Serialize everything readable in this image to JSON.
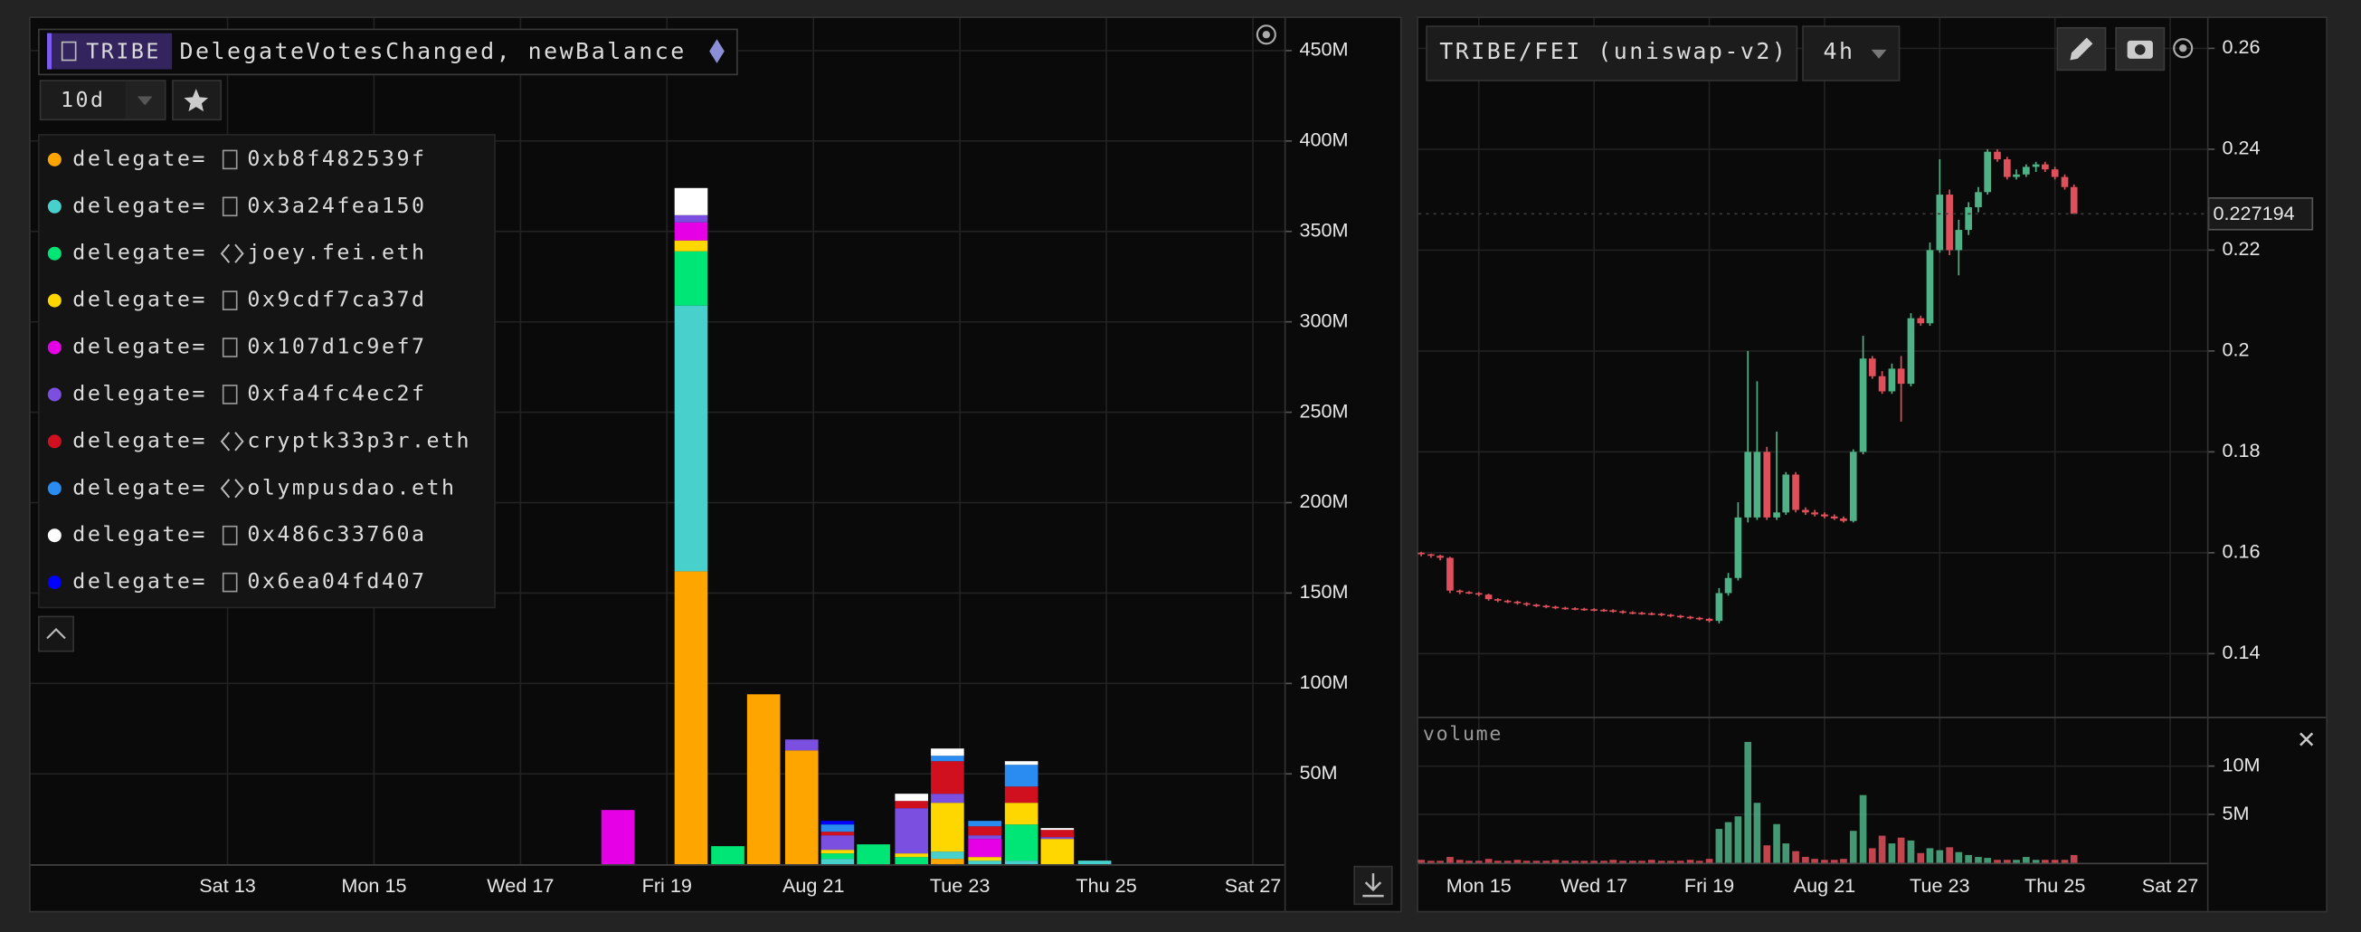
{
  "ui": {
    "left": {
      "token": "TRIBE",
      "query": "DelegateVotesChanged, newBalance",
      "range": "10d",
      "legend_prefix": "delegate="
    },
    "right": {
      "pair": "TRIBE/FEI (uniswap-v2)",
      "interval": "4h"
    }
  },
  "chart_data": [
    {
      "type": "stacked_bar",
      "x": [
        18.33,
        19.33,
        19.83,
        20.32,
        20.84,
        21.33,
        21.82,
        22.34,
        22.83,
        23.34,
        23.84,
        24.33,
        24.84
      ],
      "series": [
        {
          "name": "0xb8f482539f",
          "color": "#ffa500",
          "values": [
            null,
            162,
            null,
            94,
            63,
            null,
            null,
            null,
            3,
            null,
            null,
            null,
            null
          ]
        },
        {
          "name": "0x3a24fea150",
          "color": "#48d1cc",
          "values": [
            null,
            147,
            null,
            null,
            null,
            3,
            null,
            null,
            4,
            2,
            2,
            null,
            2
          ]
        },
        {
          "name": "joey.fei.eth",
          "color": "#00e676",
          "values": [
            null,
            30,
            10,
            null,
            null,
            3,
            11,
            4,
            null,
            null,
            20,
            null,
            null
          ]
        },
        {
          "name": "0x9cdf7ca37d",
          "color": "#ffd700",
          "values": [
            null,
            6,
            null,
            null,
            null,
            2,
            null,
            2,
            27,
            2,
            12,
            14,
            null
          ]
        },
        {
          "name": "0x107d1c9ef7",
          "color": "#e600e6",
          "values": [
            30,
            10,
            null,
            null,
            null,
            null,
            null,
            null,
            null,
            10,
            null,
            null,
            null
          ]
        },
        {
          "name": "0xfa4fc4ec2f",
          "color": "#7b4fe0",
          "values": [
            null,
            4,
            null,
            null,
            6,
            8,
            null,
            25,
            5,
            2,
            null,
            1,
            null
          ]
        },
        {
          "name": "cryptk33p3r.eth",
          "color": "#d0101f",
          "values": [
            null,
            null,
            null,
            null,
            null,
            2,
            null,
            4,
            18,
            5,
            9,
            4,
            null
          ]
        },
        {
          "name": "olympusdao.eth",
          "color": "#2a8cf0",
          "values": [
            null,
            null,
            null,
            null,
            null,
            4,
            null,
            null,
            3,
            3,
            12,
            null,
            null
          ]
        },
        {
          "name": "0x486c33760a",
          "color": "#ffffff",
          "values": [
            null,
            15,
            null,
            null,
            null,
            null,
            null,
            4,
            4,
            null,
            2,
            1,
            null
          ]
        },
        {
          "name": "0x6ea04fd407",
          "color": "#0000ff",
          "values": [
            null,
            null,
            null,
            null,
            null,
            2,
            null,
            null,
            null,
            null,
            null,
            null,
            null
          ]
        }
      ],
      "xlim": [
        10.31,
        27.43
      ],
      "ylim": [
        0,
        468
      ],
      "xticks": [
        {
          "value": 13,
          "label": "Sat 13"
        },
        {
          "value": 15,
          "label": "Mon 15"
        },
        {
          "value": 17,
          "label": "Wed 17"
        },
        {
          "value": 19,
          "label": "Fri 19"
        },
        {
          "value": 21,
          "label": "Aug 21"
        },
        {
          "value": 23,
          "label": "Tue 23"
        },
        {
          "value": 25,
          "label": "Thu 25"
        },
        {
          "value": 27,
          "label": "Sat 27"
        }
      ],
      "yticks": [
        {
          "value": 50,
          "label": "50M"
        },
        {
          "value": 100,
          "label": "100M"
        },
        {
          "value": 150,
          "label": "150M"
        },
        {
          "value": 200,
          "label": "200M"
        },
        {
          "value": 250,
          "label": "250M"
        },
        {
          "value": 300,
          "label": "300M"
        },
        {
          "value": 350,
          "label": "350M"
        },
        {
          "value": 400,
          "label": "400M"
        },
        {
          "value": 450,
          "label": "450M"
        }
      ],
      "grid": true
    },
    {
      "type": "candlestick",
      "x": [
        14,
        14.17,
        14.33,
        14.5,
        14.67,
        14.83,
        15,
        15.17,
        15.33,
        15.5,
        15.67,
        15.83,
        16,
        16.17,
        16.33,
        16.5,
        16.67,
        16.83,
        17,
        17.17,
        17.33,
        17.5,
        17.67,
        17.83,
        18,
        18.17,
        18.33,
        18.5,
        18.67,
        18.83,
        19,
        19.17,
        19.33,
        19.5,
        19.67,
        19.83,
        20,
        20.17,
        20.33,
        20.5,
        20.67,
        20.83,
        21,
        21.17,
        21.33,
        21.5,
        21.67,
        21.83,
        22,
        22.17,
        22.33,
        22.5,
        22.67,
        22.83,
        23,
        23.17,
        23.33,
        23.5,
        23.67,
        23.83,
        24,
        24.17,
        24.33,
        24.5,
        24.67,
        24.83,
        25,
        25.17,
        25.33
      ],
      "open": [
        0.16,
        0.1597,
        0.1594,
        0.159,
        0.1525,
        0.1522,
        0.152,
        0.1517,
        0.1508,
        0.1505,
        0.1503,
        0.15,
        0.1497,
        0.1495,
        0.1493,
        0.1491,
        0.149,
        0.1489,
        0.1488,
        0.1487,
        0.1486,
        0.1484,
        0.1482,
        0.1481,
        0.148,
        0.1479,
        0.1477,
        0.1475,
        0.1473,
        0.1471,
        0.1469,
        0.1465,
        0.152,
        0.155,
        0.167,
        0.167,
        0.18,
        0.167,
        0.168,
        0.1755,
        0.1685,
        0.168,
        0.1676,
        0.1672,
        0.1668,
        0.1663,
        0.18,
        0.1985,
        0.195,
        0.192,
        0.1965,
        0.1935,
        0.2065,
        0.2055,
        0.22,
        0.231,
        0.22,
        0.224,
        0.2285,
        0.2315,
        0.2395,
        0.238,
        0.2345,
        0.235,
        0.2365,
        0.237,
        0.236,
        0.2345,
        0.2325
      ],
      "high": [
        0.1602,
        0.1598,
        0.1596,
        0.1592,
        0.1527,
        0.1524,
        0.1522,
        0.1519,
        0.151,
        0.1507,
        0.1505,
        0.1502,
        0.1499,
        0.1497,
        0.1495,
        0.1493,
        0.1492,
        0.1491,
        0.149,
        0.1489,
        0.1488,
        0.1486,
        0.1484,
        0.1483,
        0.1482,
        0.1481,
        0.1479,
        0.1477,
        0.1475,
        0.1473,
        0.1471,
        0.153,
        0.156,
        0.17,
        0.2,
        0.194,
        0.181,
        0.184,
        0.176,
        0.176,
        0.169,
        0.1685,
        0.168,
        0.1676,
        0.1672,
        0.1805,
        0.203,
        0.199,
        0.196,
        0.1975,
        0.199,
        0.2075,
        0.207,
        0.2215,
        0.238,
        0.232,
        0.226,
        0.2295,
        0.2325,
        0.24,
        0.24,
        0.2385,
        0.236,
        0.237,
        0.2375,
        0.2375,
        0.2365,
        0.235,
        0.233
      ],
      "low": [
        0.1593,
        0.159,
        0.1585,
        0.152,
        0.1518,
        0.1518,
        0.1514,
        0.1505,
        0.1502,
        0.15,
        0.1497,
        0.1494,
        0.1492,
        0.149,
        0.1488,
        0.1487,
        0.1486,
        0.1485,
        0.1484,
        0.1483,
        0.1481,
        0.1479,
        0.1478,
        0.1477,
        0.1476,
        0.1474,
        0.1472,
        0.147,
        0.1468,
        0.1466,
        0.1462,
        0.146,
        0.1515,
        0.1545,
        0.166,
        0.1665,
        0.1665,
        0.1665,
        0.1675,
        0.168,
        0.1675,
        0.1672,
        0.1668,
        0.1665,
        0.166,
        0.166,
        0.1795,
        0.1945,
        0.1915,
        0.1915,
        0.186,
        0.193,
        0.205,
        0.205,
        0.2195,
        0.219,
        0.215,
        0.223,
        0.2275,
        0.231,
        0.2375,
        0.234,
        0.234,
        0.2345,
        0.2355,
        0.2355,
        0.234,
        0.232,
        0.227194
      ],
      "close": [
        0.1597,
        0.1594,
        0.159,
        0.1525,
        0.1522,
        0.152,
        0.1517,
        0.1508,
        0.1505,
        0.1503,
        0.15,
        0.1497,
        0.1495,
        0.1493,
        0.1491,
        0.149,
        0.1489,
        0.1488,
        0.1487,
        0.1486,
        0.1484,
        0.1482,
        0.1481,
        0.148,
        0.1479,
        0.1477,
        0.1475,
        0.1473,
        0.1471,
        0.1469,
        0.1465,
        0.152,
        0.155,
        0.167,
        0.18,
        0.18,
        0.167,
        0.168,
        0.1755,
        0.1685,
        0.168,
        0.1676,
        0.1672,
        0.1668,
        0.1663,
        0.18,
        0.1985,
        0.195,
        0.192,
        0.1965,
        0.1935,
        0.2065,
        0.2055,
        0.22,
        0.231,
        0.22,
        0.224,
        0.2285,
        0.2315,
        0.2395,
        0.238,
        0.2345,
        0.235,
        0.2365,
        0.237,
        0.236,
        0.2345,
        0.2325,
        0.227194
      ],
      "up_color": "#4fb286",
      "down_color": "#e0505c",
      "last_value": 0.227194,
      "xlim": [
        13.95,
        27.64
      ],
      "ylim": [
        0.1278,
        0.266
      ],
      "yticks": [
        0.14,
        0.16,
        0.18,
        0.2,
        0.22,
        0.24,
        0.26
      ],
      "grid": true
    },
    {
      "type": "bar",
      "title": "volume",
      "x": [
        14,
        14.17,
        14.33,
        14.5,
        14.67,
        14.83,
        15,
        15.17,
        15.33,
        15.5,
        15.67,
        15.83,
        16,
        16.17,
        16.33,
        16.5,
        16.67,
        16.83,
        17,
        17.17,
        17.33,
        17.5,
        17.67,
        17.83,
        18,
        18.17,
        18.33,
        18.5,
        18.67,
        18.83,
        19,
        19.17,
        19.33,
        19.5,
        19.67,
        19.83,
        20,
        20.17,
        20.33,
        20.5,
        20.67,
        20.83,
        21,
        21.17,
        21.33,
        21.5,
        21.67,
        21.83,
        22,
        22.17,
        22.33,
        22.5,
        22.67,
        22.83,
        23,
        23.17,
        23.33,
        23.5,
        23.67,
        23.83,
        24,
        24.17,
        24.33,
        24.5,
        24.67,
        24.83,
        25,
        25.17,
        25.33
      ],
      "values": [
        0.3,
        0.2,
        0.2,
        0.6,
        0.3,
        0.2,
        0.2,
        0.4,
        0.2,
        0.2,
        0.3,
        0.2,
        0.2,
        0.2,
        0.3,
        0.2,
        0.2,
        0.2,
        0.2,
        0.2,
        0.3,
        0.2,
        0.2,
        0.2,
        0.3,
        0.2,
        0.2,
        0.2,
        0.3,
        0.2,
        0.4,
        3.5,
        4.2,
        4.8,
        12.5,
        6.2,
        1.8,
        4.0,
        2.0,
        1.2,
        0.6,
        0.4,
        0.3,
        0.3,
        0.4,
        3.3,
        7.0,
        1.5,
        2.8,
        2.0,
        2.6,
        2.3,
        1.0,
        1.5,
        1.3,
        1.6,
        1.1,
        0.8,
        0.6,
        0.5,
        0.3,
        0.3,
        0.3,
        0.6,
        0.3,
        0.3,
        0.3,
        0.3,
        0.8
      ],
      "xlim": [
        13.95,
        27.64
      ],
      "ylim": [
        0,
        14.8
      ],
      "xticks": [
        {
          "value": 15,
          "label": "Mon 15"
        },
        {
          "value": 17,
          "label": "Wed 17"
        },
        {
          "value": 19,
          "label": "Fri 19"
        },
        {
          "value": 21,
          "label": "Aug 21"
        },
        {
          "value": 23,
          "label": "Tue 23"
        },
        {
          "value": 25,
          "label": "Thu 25"
        },
        {
          "value": 27,
          "label": "Sat 27"
        }
      ],
      "yticks": [
        {
          "value": 5,
          "label": "5M"
        },
        {
          "value": 10,
          "label": "10M"
        }
      ],
      "grid": true
    }
  ]
}
